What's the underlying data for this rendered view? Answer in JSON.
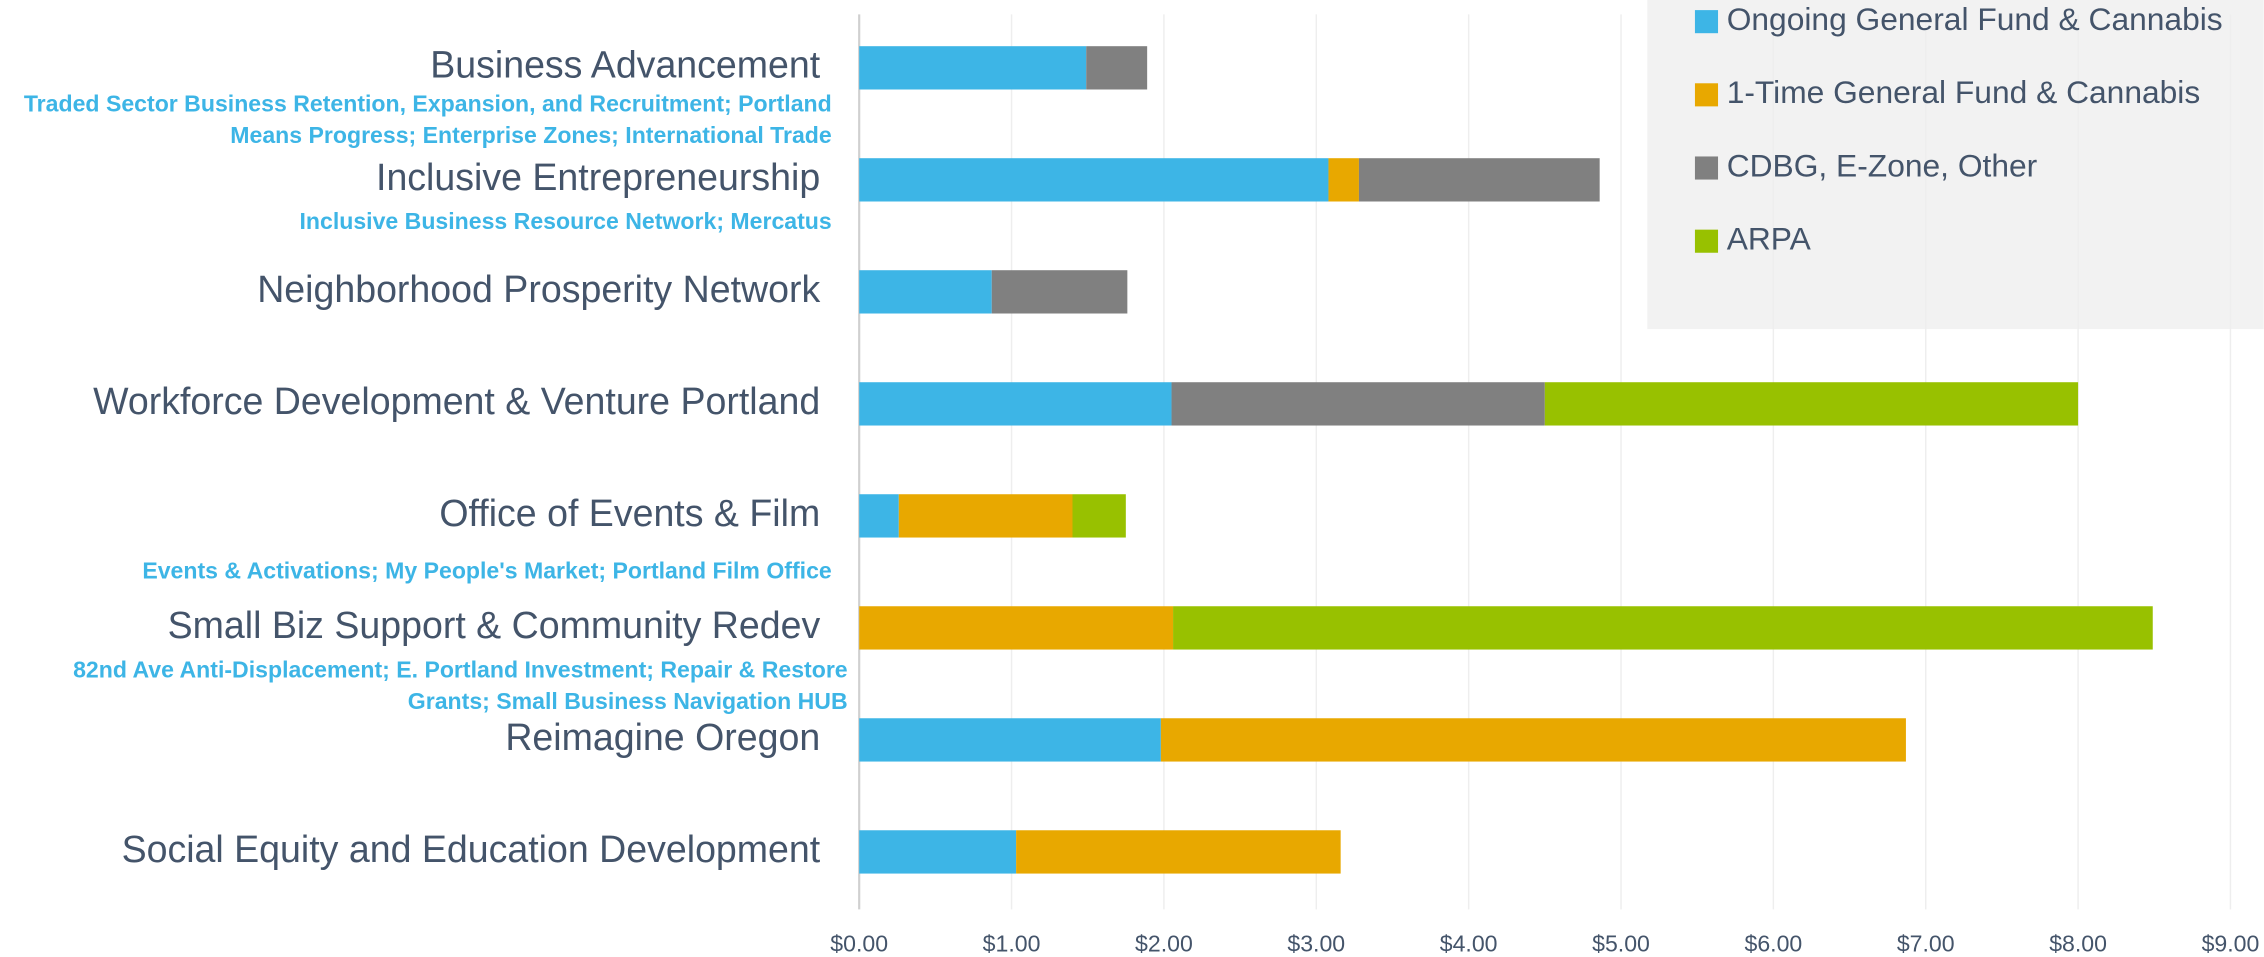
{
  "chart_data": {
    "type": "stacked_barh",
    "categories": [
      "Business Advancement",
      "Inclusive Entrepreneurship",
      "Neighborhood Prosperity Network",
      "Workforce Development & Venture Portland",
      "Office of Events & Film",
      "Small Biz Support & Community Redev",
      "Reimagine Oregon",
      "Social Equity and Education Development"
    ],
    "descriptions": [
      [
        "Traded Sector Business Retention, Expansion, and Recruitment; Portland",
        "Means Progress; Enterprise Zones; International Trade"
      ],
      [
        "Inclusive Business Resource Network; Mercatus"
      ],
      null,
      null,
      [
        "Events & Activations; My People's Market; Portland Film Office"
      ],
      [
        "82nd Ave Anti-Displacement; E. Portland Investment; Repair & Restore",
        "Grants; Small Business Navigation HUB"
      ],
      null,
      null
    ],
    "series": [
      {
        "name": "Ongoing General Fund & Cannabis",
        "color": "#3db5e6",
        "values": [
          1.49,
          3.08,
          0.87,
          2.05,
          0.26,
          0,
          1.98,
          1.03
        ]
      },
      {
        "name": "1-Time General Fund & Cannabis",
        "color": "#e8a800",
        "values": [
          0,
          0.2,
          0,
          0,
          1.14,
          2.06,
          4.89,
          2.13
        ]
      },
      {
        "name": "CDBG, E-Zone, Other",
        "color": "#808080",
        "values": [
          0.4,
          1.58,
          0.89,
          2.45,
          0,
          0,
          0,
          0
        ]
      },
      {
        "name": "ARPA",
        "color": "#98c100",
        "values": [
          0,
          0,
          0,
          3.5,
          0.35,
          6.43,
          0,
          0
        ]
      }
    ],
    "xlim": [
      0,
      9
    ],
    "xticks": [
      {
        "value": 0,
        "label": "$0.00"
      },
      {
        "value": 1,
        "label": "$1.00"
      },
      {
        "value": 2,
        "label": "$2.00"
      },
      {
        "value": 3,
        "label": "$3.00"
      },
      {
        "value": 4,
        "label": "$4.00"
      },
      {
        "value": 5,
        "label": "$5.00"
      },
      {
        "value": 6,
        "label": "$6.00"
      },
      {
        "value": 7,
        "label": "$7.00"
      },
      {
        "value": 8,
        "label": "$8.00"
      },
      {
        "value": 9,
        "label": "$9.00"
      }
    ],
    "grid": true,
    "legend": "top-right"
  }
}
